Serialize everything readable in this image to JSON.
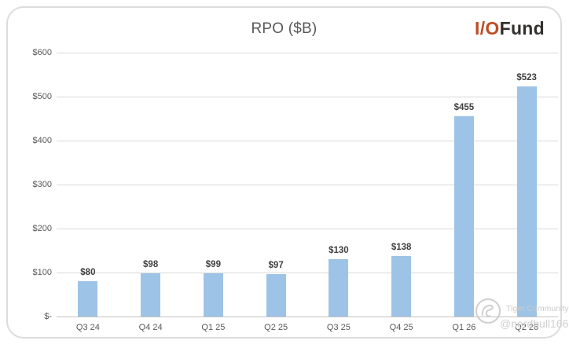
{
  "header": {
    "logo_io": "I/O",
    "logo_fund": "Fund"
  },
  "watermark": {
    "name": "Tiger Community",
    "handle": "@nerdbull1669"
  },
  "colors": {
    "bar_fill": "#9dc3e6",
    "gridline": "#d9d9d9",
    "axis_text": "#595959",
    "data_label": "#404040",
    "logo_accent": "#bf4d26",
    "logo_dark": "#322f2d",
    "card_border": "#dcdcdc",
    "watermark_gray": "#cbcbcb"
  },
  "chart_data": {
    "type": "bar",
    "title": "RPO ($B)",
    "categories": [
      "Q3 24",
      "Q4 24",
      "Q1 25",
      "Q2 25",
      "Q3 25",
      "Q4 25",
      "Q1 26",
      "Q2 26"
    ],
    "values": [
      80,
      98,
      99,
      97,
      130,
      138,
      455,
      523
    ],
    "data_labels": [
      "$80",
      "$98",
      "$99",
      "$97",
      "$130",
      "$138",
      "$455",
      "$523"
    ],
    "xlabel": "",
    "ylabel": "",
    "ylim": [
      0,
      600
    ],
    "ytick_interval": 100,
    "ytick_labels": [
      "$-",
      "$100",
      "$200",
      "$300",
      "$400",
      "$500",
      "$600"
    ],
    "grid": true,
    "legend": "none",
    "bar_color": "#9dc3e6"
  }
}
